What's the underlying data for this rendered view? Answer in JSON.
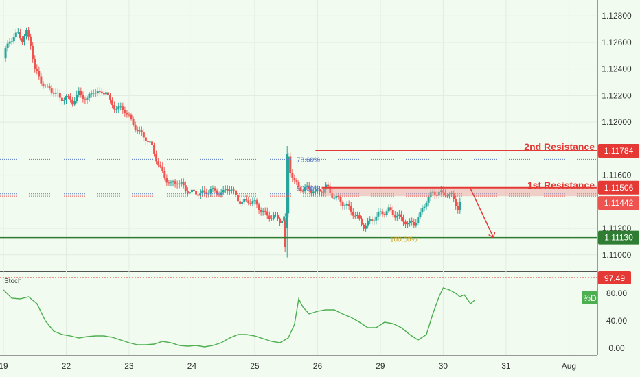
{
  "price_axis": {
    "ticks": [
      "1.12800",
      "1.12600",
      "1.12400",
      "1.12200",
      "1.12000",
      "1.11600",
      "1.11200",
      "1.11000"
    ],
    "tick_values": [
      1.128,
      1.126,
      1.124,
      1.122,
      1.12,
      1.116,
      1.112,
      1.11
    ],
    "range": [
      1.1088,
      1.1292
    ]
  },
  "stoch_axis": {
    "ticks": [
      "80.00",
      "40.00",
      "0.00"
    ],
    "tick_values": [
      80,
      40,
      0
    ],
    "range": [
      -10,
      110
    ]
  },
  "time_axis": {
    "labels": [
      "19",
      "22",
      "23",
      "24",
      "25",
      "26",
      "29",
      "30",
      "31",
      "Aug"
    ],
    "positions": [
      0,
      3,
      6,
      9,
      12,
      15,
      18,
      21,
      24,
      27
    ],
    "range": [
      0,
      28.2
    ]
  },
  "levels": {
    "second_resistance": {
      "label": "2nd Resistance",
      "value": "1.11784",
      "num": 1.11784,
      "color": "#e53935"
    },
    "first_resistance": {
      "label": "1st Resistance",
      "value": "1.11506",
      "num": 1.11506,
      "color": "#e53935"
    },
    "current_price": {
      "value": "1.11442",
      "num": 1.11442,
      "color": "#ef5350"
    },
    "support": {
      "value": "1.11130",
      "num": 1.1113,
      "color": "#2e7d32"
    }
  },
  "fib": {
    "f786": {
      "label": "78.60%",
      "num": 1.1172,
      "color": "#5b7bc6"
    },
    "f50": {
      "label": "50.00%",
      "num": 1.1146,
      "color": "#5b7bc6"
    },
    "f100": {
      "label": "100.00%",
      "num": 1.1112,
      "color": "#c9a227"
    }
  },
  "stoch": {
    "name": "Stoch",
    "value": "97.49",
    "value_color": "#e53935",
    "legend": "%D",
    "legend_color": "#4caf50",
    "line_color": "#4caf50"
  },
  "chart_data": {
    "type": "candlestick",
    "up_color": "#26a69a",
    "down_color": "#ef5350",
    "xlim": [
      0,
      28.2
    ],
    "ylim": [
      1.1088,
      1.1292
    ],
    "price_path": [
      [
        0,
        1.1248
      ],
      [
        0.3,
        1.1262
      ],
      [
        0.5,
        1.1265
      ],
      [
        0.7,
        1.1268
      ],
      [
        0.9,
        1.1262
      ],
      [
        1.1,
        1.1266
      ],
      [
        1.3,
        1.1258
      ],
      [
        1.5,
        1.124
      ],
      [
        1.8,
        1.1232
      ],
      [
        2.1,
        1.1225
      ],
      [
        2.4,
        1.1222
      ],
      [
        2.7,
        1.1218
      ],
      [
        3.0,
        1.122
      ],
      [
        3.3,
        1.1215
      ],
      [
        3.6,
        1.122
      ],
      [
        4.0,
        1.1218
      ],
      [
        4.3,
        1.1225
      ],
      [
        4.6,
        1.122
      ],
      [
        4.9,
        1.1223
      ],
      [
        5.1,
        1.1215
      ],
      [
        5.4,
        1.1212
      ],
      [
        5.8,
        1.1208
      ],
      [
        6.1,
        1.12
      ],
      [
        6.4,
        1.1195
      ],
      [
        6.8,
        1.1188
      ],
      [
        7.1,
        1.118
      ],
      [
        7.4,
        1.1168
      ],
      [
        7.7,
        1.116
      ],
      [
        8.0,
        1.1153
      ],
      [
        8.3,
        1.1154
      ],
      [
        8.7,
        1.115
      ],
      [
        9.0,
        1.1148
      ],
      [
        9.3,
        1.1146
      ],
      [
        9.6,
        1.1145
      ],
      [
        9.9,
        1.115
      ],
      [
        10.2,
        1.1148
      ],
      [
        10.5,
        1.1146
      ],
      [
        10.8,
        1.115
      ],
      [
        11.1,
        1.1145
      ],
      [
        11.4,
        1.114
      ],
      [
        11.7,
        1.114
      ],
      [
        12.0,
        1.1138
      ],
      [
        12.3,
        1.1135
      ],
      [
        12.6,
        1.113
      ],
      [
        12.9,
        1.1128
      ],
      [
        13.2,
        1.1125
      ],
      [
        13.5,
        1.113
      ],
      [
        13.6,
        1.1175
      ],
      [
        13.7,
        1.1165
      ],
      [
        13.9,
        1.1155
      ],
      [
        14.1,
        1.115
      ],
      [
        14.3,
        1.1148
      ],
      [
        14.5,
        1.115
      ],
      [
        14.8,
        1.115
      ],
      [
        15.1,
        1.1148
      ],
      [
        15.4,
        1.115
      ],
      [
        15.7,
        1.1145
      ],
      [
        16.0,
        1.1143
      ],
      [
        16.3,
        1.1138
      ],
      [
        16.6,
        1.1132
      ],
      [
        16.9,
        1.1128
      ],
      [
        17.2,
        1.1123
      ],
      [
        17.5,
        1.1125
      ],
      [
        17.8,
        1.1128
      ],
      [
        18.1,
        1.1132
      ],
      [
        18.4,
        1.1135
      ],
      [
        18.7,
        1.113
      ],
      [
        19.0,
        1.1126
      ],
      [
        19.3,
        1.1124
      ],
      [
        19.6,
        1.1125
      ],
      [
        19.9,
        1.113
      ],
      [
        20.2,
        1.114
      ],
      [
        20.5,
        1.1147
      ],
      [
        20.8,
        1.1148
      ],
      [
        21.1,
        1.1146
      ],
      [
        21.4,
        1.1143
      ],
      [
        21.7,
        1.1136
      ],
      [
        21.9,
        1.1144
      ]
    ],
    "stoch_path": [
      [
        0,
        85
      ],
      [
        0.4,
        73
      ],
      [
        0.8,
        72
      ],
      [
        1.2,
        75
      ],
      [
        1.6,
        65
      ],
      [
        2.0,
        40
      ],
      [
        2.4,
        25
      ],
      [
        2.8,
        20
      ],
      [
        3.2,
        18
      ],
      [
        3.6,
        15
      ],
      [
        4.0,
        17
      ],
      [
        4.4,
        18
      ],
      [
        4.8,
        18
      ],
      [
        5.2,
        16
      ],
      [
        5.6,
        12
      ],
      [
        6.0,
        8
      ],
      [
        6.4,
        5
      ],
      [
        6.8,
        5
      ],
      [
        7.2,
        6
      ],
      [
        7.6,
        10
      ],
      [
        8.0,
        8
      ],
      [
        8.4,
        4
      ],
      [
        8.8,
        3
      ],
      [
        9.2,
        4
      ],
      [
        9.6,
        2
      ],
      [
        10.0,
        4
      ],
      [
        10.4,
        8
      ],
      [
        10.8,
        15
      ],
      [
        11.2,
        20
      ],
      [
        11.6,
        20
      ],
      [
        12.0,
        18
      ],
      [
        12.4,
        14
      ],
      [
        12.8,
        10
      ],
      [
        13.2,
        8
      ],
      [
        13.6,
        15
      ],
      [
        13.9,
        35
      ],
      [
        14.1,
        72
      ],
      [
        14.3,
        60
      ],
      [
        14.6,
        50
      ],
      [
        15.0,
        54
      ],
      [
        15.4,
        56
      ],
      [
        15.8,
        56
      ],
      [
        16.2,
        50
      ],
      [
        16.6,
        45
      ],
      [
        17.0,
        38
      ],
      [
        17.4,
        30
      ],
      [
        17.8,
        30
      ],
      [
        18.2,
        38
      ],
      [
        18.6,
        36
      ],
      [
        19.0,
        30
      ],
      [
        19.4,
        20
      ],
      [
        19.8,
        12
      ],
      [
        20.2,
        20
      ],
      [
        20.5,
        50
      ],
      [
        20.8,
        75
      ],
      [
        21.0,
        88
      ],
      [
        21.3,
        85
      ],
      [
        21.6,
        80
      ],
      [
        21.8,
        75
      ],
      [
        22.0,
        78
      ],
      [
        22.3,
        65
      ],
      [
        22.5,
        70
      ]
    ]
  }
}
